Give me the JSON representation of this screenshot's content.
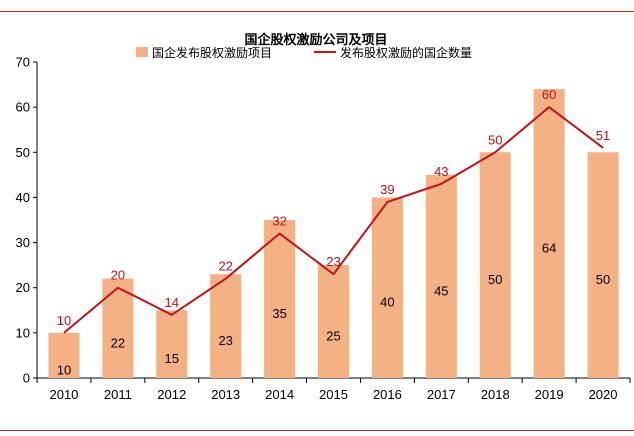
{
  "chart_data": {
    "type": "bar",
    "title": "国企股权激励公司及项目",
    "categories": [
      "2010",
      "2011",
      "2012",
      "2013",
      "2014",
      "2015",
      "2016",
      "2017",
      "2018",
      "2019",
      "2020"
    ],
    "series": [
      {
        "name": "国企发布股权激励项目",
        "kind": "bar",
        "color": "#f4b183",
        "values": [
          10,
          22,
          15,
          23,
          35,
          25,
          40,
          45,
          50,
          64,
          50
        ]
      },
      {
        "name": "发布股权激励的国企数量",
        "kind": "line",
        "color": "#c0141b",
        "values": [
          10,
          20,
          14,
          22,
          32,
          23,
          39,
          43,
          50,
          60,
          51
        ]
      }
    ],
    "ylim": [
      0,
      70
    ],
    "yticks": [
      0,
      10,
      20,
      30,
      40,
      50,
      60,
      70
    ],
    "xlabel": "",
    "ylabel": "",
    "legend": "top"
  }
}
